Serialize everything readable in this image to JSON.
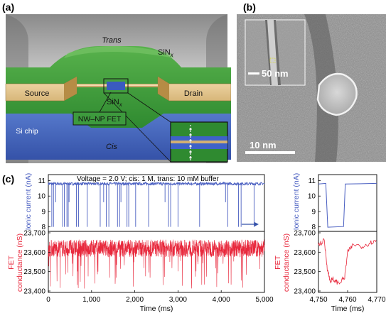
{
  "panel_a": {
    "label": "(a)",
    "trans": "Trans",
    "cis": "Cis",
    "sinx_top_main": "SiN",
    "sinx_top_sub": "x",
    "sinx_mid_main": "SiN",
    "sinx_mid_sub": "x",
    "source": "Source",
    "drain": "Drain",
    "fet_label": "NW–NP FET",
    "chip": "Si chip"
  },
  "panel_b": {
    "label": "(b)",
    "inset_scale": "50 nm",
    "main_scale": "10 nm"
  },
  "panel_c": {
    "label": "(c)",
    "annotation": "Voltage = 2.0 V; cis: 1 M, trans: 10 mM buffer",
    "ylabel_top": "Ionic current (nA)",
    "ylabel_bottom_1": "FET",
    "ylabel_bottom_2": "conductance (nS)",
    "xlabel": "Time (ms)",
    "top_ticks": [
      "11",
      "10",
      "9",
      "8"
    ],
    "bottom_ticks": [
      "23,700",
      "23,600",
      "23,500",
      "23,400"
    ],
    "x_ticks_main": [
      "0",
      "1,000",
      "2,000",
      "3,000",
      "4,000",
      "5,000"
    ],
    "x_ticks_zoom": [
      "4,750",
      "4,760",
      "4,770"
    ]
  },
  "colors": {
    "ionic": "#4a5fc1",
    "fet": "#e8283c",
    "green": "#3d9a3d"
  },
  "chart_data": [
    {
      "type": "line",
      "title": "",
      "xlabel": "Time (ms)",
      "ylabel": "Ionic current (nA)",
      "xlim": [
        0,
        5000
      ],
      "ylim": [
        7.8,
        11.3
      ],
      "series": [
        {
          "name": "",
          "baseline": 10.8,
          "blockade_level": 8.0,
          "events_ms": [
            80,
            120,
            170,
            330,
            370,
            430,
            460,
            480,
            650,
            700,
            900,
            1200,
            1280,
            1340,
            1400,
            1600,
            1650,
            1680,
            1820,
            1860,
            2020,
            2320,
            2700,
            2780,
            2830,
            3000,
            3500,
            4100,
            4150,
            4400,
            4460,
            4760
          ]
        }
      ]
    },
    {
      "type": "line",
      "title": "",
      "xlabel": "Time (ms)",
      "ylabel": "FET conductance (nS)",
      "xlim": [
        0,
        5000
      ],
      "ylim": [
        23400,
        23700
      ],
      "series": [
        {
          "name": "",
          "baseline": 23620,
          "noise_range": [
            23580,
            23680
          ]
        }
      ]
    },
    {
      "type": "line",
      "xlabel": "Time (ms)",
      "ylabel": "Ionic current (nA)",
      "xlim": [
        4750,
        4770
      ],
      "ylim": [
        7.8,
        11.3
      ],
      "series": [
        {
          "name": "",
          "x": [
            4750,
            4752.5,
            4753.2,
            4758.6,
            4759.2,
            4770
          ],
          "y": [
            10.8,
            10.8,
            8.0,
            8.0,
            10.8,
            10.8
          ]
        }
      ]
    },
    {
      "type": "line",
      "xlabel": "Time (ms)",
      "ylabel": "FET conductance (nS)",
      "xlim": [
        4750,
        4770
      ],
      "ylim": [
        23400,
        23700
      ],
      "series": [
        {
          "name": "",
          "x": [
            4750,
            4752,
            4753,
            4754,
            4755,
            4757,
            4759,
            4760,
            4762,
            4765,
            4768,
            4770
          ],
          "y": [
            23640,
            23660,
            23520,
            23450,
            23460,
            23440,
            23470,
            23600,
            23640,
            23630,
            23650,
            23660
          ]
        }
      ]
    }
  ]
}
